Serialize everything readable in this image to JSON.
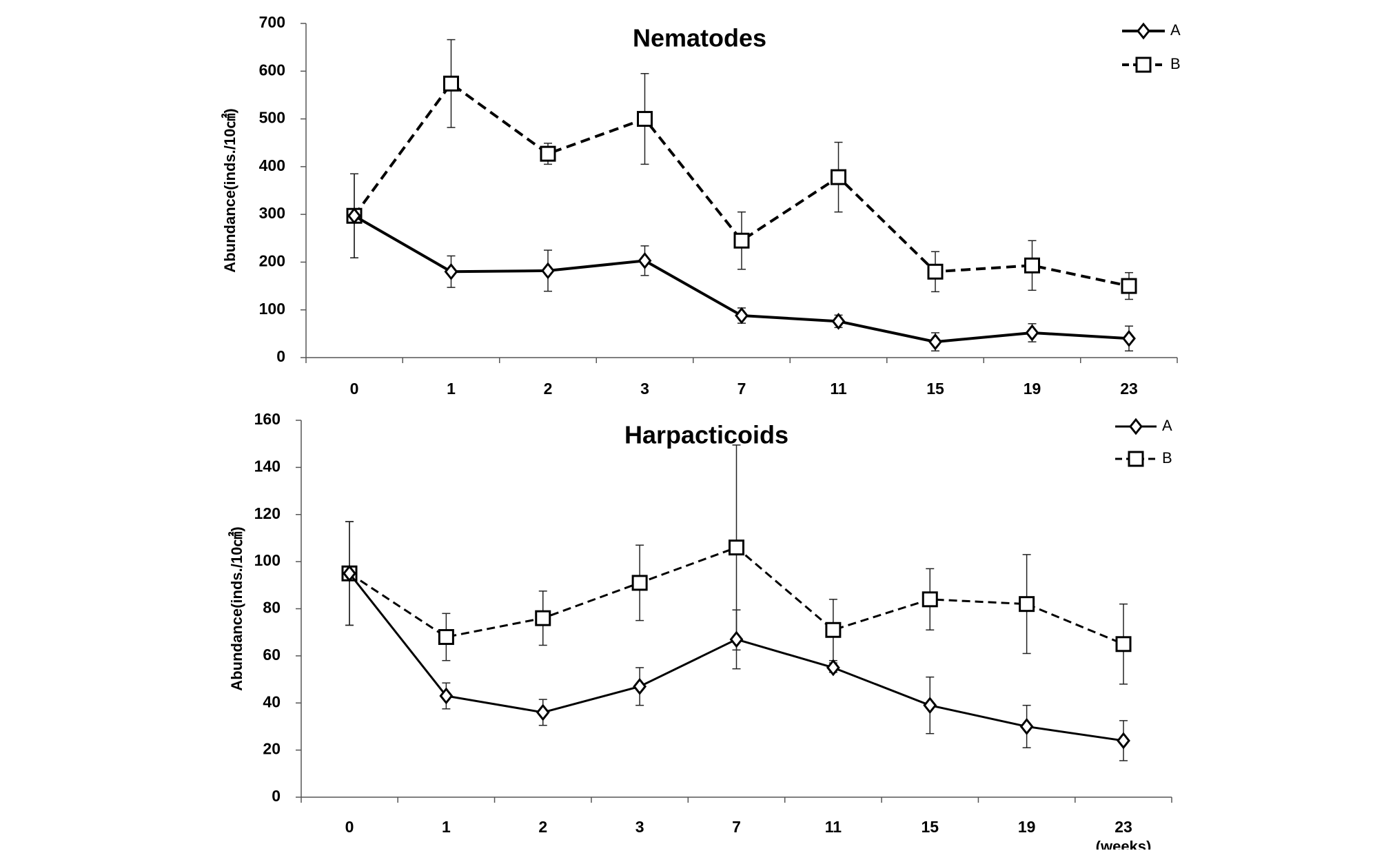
{
  "chart_data": [
    {
      "type": "line",
      "title": "Nematodes",
      "ylabel": "Abundance(inds./10㎠)",
      "xlabel": "",
      "categories": [
        "0",
        "1",
        "2",
        "3",
        "7",
        "11",
        "15",
        "19",
        "23"
      ],
      "ylim": [
        0,
        700
      ],
      "yticks": [
        "0",
        "100",
        "200",
        "300",
        "400",
        "500",
        "600",
        "700"
      ],
      "grid": false,
      "legend_position": "top-right",
      "series": [
        {
          "name": "A",
          "line_style": "solid",
          "marker": "diamond",
          "values": [
            297,
            180,
            182,
            203,
            88,
            76,
            33,
            52,
            40
          ],
          "errors": [
            88,
            33,
            43,
            31,
            16,
            13,
            19,
            19,
            26
          ]
        },
        {
          "name": "B",
          "line_style": "dashed",
          "marker": "square",
          "values": [
            297,
            574,
            427,
            500,
            245,
            378,
            180,
            193,
            150
          ],
          "errors": [
            88,
            92,
            22,
            95,
            60,
            73,
            42,
            52,
            28
          ]
        }
      ]
    },
    {
      "type": "line",
      "title": "Harpacticoids",
      "ylabel": "Abundance(inds./10㎠)",
      "xlabel": "(weeks)",
      "categories": [
        "0",
        "1",
        "2",
        "3",
        "7",
        "11",
        "15",
        "19",
        "23"
      ],
      "ylim": [
        0,
        160
      ],
      "yticks": [
        "0",
        "20",
        "40",
        "60",
        "80",
        "100",
        "120",
        "140",
        "160"
      ],
      "grid": false,
      "legend_position": "top-right",
      "series": [
        {
          "name": "A",
          "line_style": "solid",
          "marker": "diamond",
          "values": [
            95,
            43,
            36,
            47,
            67,
            55,
            39,
            30,
            24
          ],
          "errors": [
            22,
            5.5,
            5.5,
            8,
            12.5,
            2,
            12,
            9,
            8.5
          ]
        },
        {
          "name": "B",
          "line_style": "dashed",
          "marker": "square",
          "values": [
            95,
            68,
            76,
            91,
            106,
            71,
            84,
            82,
            65
          ],
          "errors": [
            22,
            10,
            11.5,
            16,
            43.5,
            13,
            13,
            21,
            17
          ]
        }
      ]
    }
  ]
}
